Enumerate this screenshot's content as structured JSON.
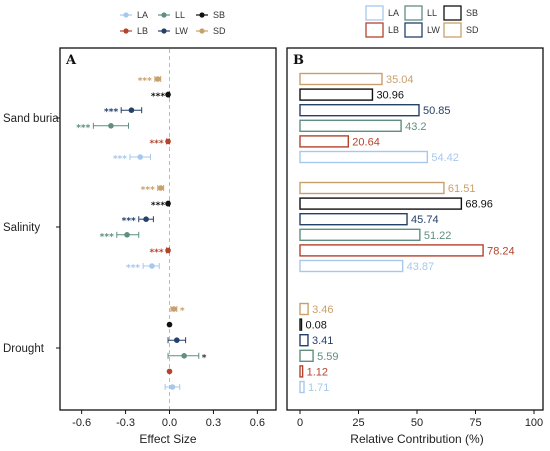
{
  "colors": {
    "LA": "#a6c8ec",
    "LB": "#b5432b",
    "LL": "#5f8f80",
    "LW": "#24416b",
    "SB": "#111111",
    "SD": "#c9a06b"
  },
  "chart_data": [
    {
      "type": "scatter",
      "panel_label": "A",
      "xlabel": "Effect Size",
      "xlim": [
        -0.7,
        0.7
      ],
      "xticks": [
        "-0.6",
        "-0.3",
        "0.0",
        "0.3",
        "0.6"
      ],
      "xtick_values": [
        -0.6,
        -0.3,
        0.0,
        0.3,
        0.6
      ],
      "legend": [
        "LA",
        "LB",
        "LL",
        "LW",
        "SB",
        "SD"
      ],
      "legend_placement": "top",
      "zero_line": "dashed",
      "groups": [
        {
          "name": "Sand burial",
          "points": [
            {
              "series": "LA",
              "value": -0.2,
              "ci": [
                -0.27,
                -0.13
              ],
              "sig": "***"
            },
            {
              "series": "LB",
              "value": -0.01,
              "ci": [
                -0.02,
                0.0
              ],
              "sig": "***"
            },
            {
              "series": "LL",
              "value": -0.4,
              "ci": [
                -0.52,
                -0.28
              ],
              "sig": "***"
            },
            {
              "series": "LW",
              "value": -0.26,
              "ci": [
                -0.33,
                -0.19
              ],
              "sig": "***"
            },
            {
              "series": "SB",
              "value": -0.01,
              "ci": [
                -0.01,
                0.0
              ],
              "sig": "***"
            },
            {
              "series": "SD",
              "value": -0.08,
              "ci": [
                -0.1,
                -0.06
              ],
              "sig": "***"
            }
          ]
        },
        {
          "name": "Salinity",
          "points": [
            {
              "series": "LA",
              "value": -0.12,
              "ci": [
                -0.18,
                -0.07
              ],
              "sig": "***"
            },
            {
              "series": "LB",
              "value": -0.01,
              "ci": [
                -0.02,
                0.0
              ],
              "sig": "***"
            },
            {
              "series": "LL",
              "value": -0.29,
              "ci": [
                -0.36,
                -0.21
              ],
              "sig": "***"
            },
            {
              "series": "LW",
              "value": -0.16,
              "ci": [
                -0.21,
                -0.11
              ],
              "sig": "***"
            },
            {
              "series": "SB",
              "value": -0.01,
              "ci": [
                -0.01,
                0.0
              ],
              "sig": "***"
            },
            {
              "series": "SD",
              "value": -0.06,
              "ci": [
                -0.08,
                -0.04
              ],
              "sig": "***"
            }
          ]
        },
        {
          "name": "Drought",
          "points": [
            {
              "series": "LA",
              "value": 0.02,
              "ci": [
                -0.03,
                0.07
              ],
              "sig": ""
            },
            {
              "series": "LB",
              "value": 0.0,
              "ci": [
                0.0,
                0.0
              ],
              "sig": ""
            },
            {
              "series": "LL",
              "value": 0.1,
              "ci": [
                -0.01,
                0.2
              ],
              "sig": "*"
            },
            {
              "series": "LW",
              "value": 0.05,
              "ci": [
                -0.01,
                0.11
              ],
              "sig": ""
            },
            {
              "series": "SB",
              "value": 0.0,
              "ci": [
                0.0,
                0.0
              ],
              "sig": ""
            },
            {
              "series": "SD",
              "value": 0.03,
              "ci": [
                0.01,
                0.05
              ],
              "sig": "*"
            }
          ]
        }
      ]
    },
    {
      "type": "bar",
      "orientation": "horizontal",
      "panel_label": "B",
      "xlabel": "Relative Contribution (%)",
      "xlim": [
        0,
        100
      ],
      "xticks": [
        "0",
        "25",
        "50",
        "75",
        "100"
      ],
      "xtick_values": [
        0,
        25,
        50,
        75,
        100
      ],
      "legend": [
        "LA",
        "LB",
        "LL",
        "LW",
        "SB",
        "SD"
      ],
      "legend_placement": "top",
      "groups": [
        {
          "name": "Sand burial",
          "bars": [
            {
              "series": "SD",
              "value": 35.04,
              "label": "35.04"
            },
            {
              "series": "SB",
              "value": 30.96,
              "label": "30.96"
            },
            {
              "series": "LW",
              "value": 50.85,
              "label": "50.85"
            },
            {
              "series": "LL",
              "value": 43.2,
              "label": "43.2"
            },
            {
              "series": "LB",
              "value": 20.64,
              "label": "20.64"
            },
            {
              "series": "LA",
              "value": 54.42,
              "label": "54.42"
            }
          ]
        },
        {
          "name": "Salinity",
          "bars": [
            {
              "series": "SD",
              "value": 61.51,
              "label": "61.51"
            },
            {
              "series": "SB",
              "value": 68.96,
              "label": "68.96"
            },
            {
              "series": "LW",
              "value": 45.74,
              "label": "45.74"
            },
            {
              "series": "LL",
              "value": 51.22,
              "label": "51.22"
            },
            {
              "series": "LB",
              "value": 78.24,
              "label": "78.24"
            },
            {
              "series": "LA",
              "value": 43.87,
              "label": "43.87"
            }
          ]
        },
        {
          "name": "Drought",
          "bars": [
            {
              "series": "SD",
              "value": 3.46,
              "label": "3.46"
            },
            {
              "series": "SB",
              "value": 0.08,
              "label": "0.08"
            },
            {
              "series": "LW",
              "value": 3.41,
              "label": "3.41"
            },
            {
              "series": "LL",
              "value": 5.59,
              "label": "5.59"
            },
            {
              "series": "LB",
              "value": 1.12,
              "label": "1.12"
            },
            {
              "series": "LA",
              "value": 1.71,
              "label": "1.71"
            }
          ]
        }
      ]
    }
  ]
}
